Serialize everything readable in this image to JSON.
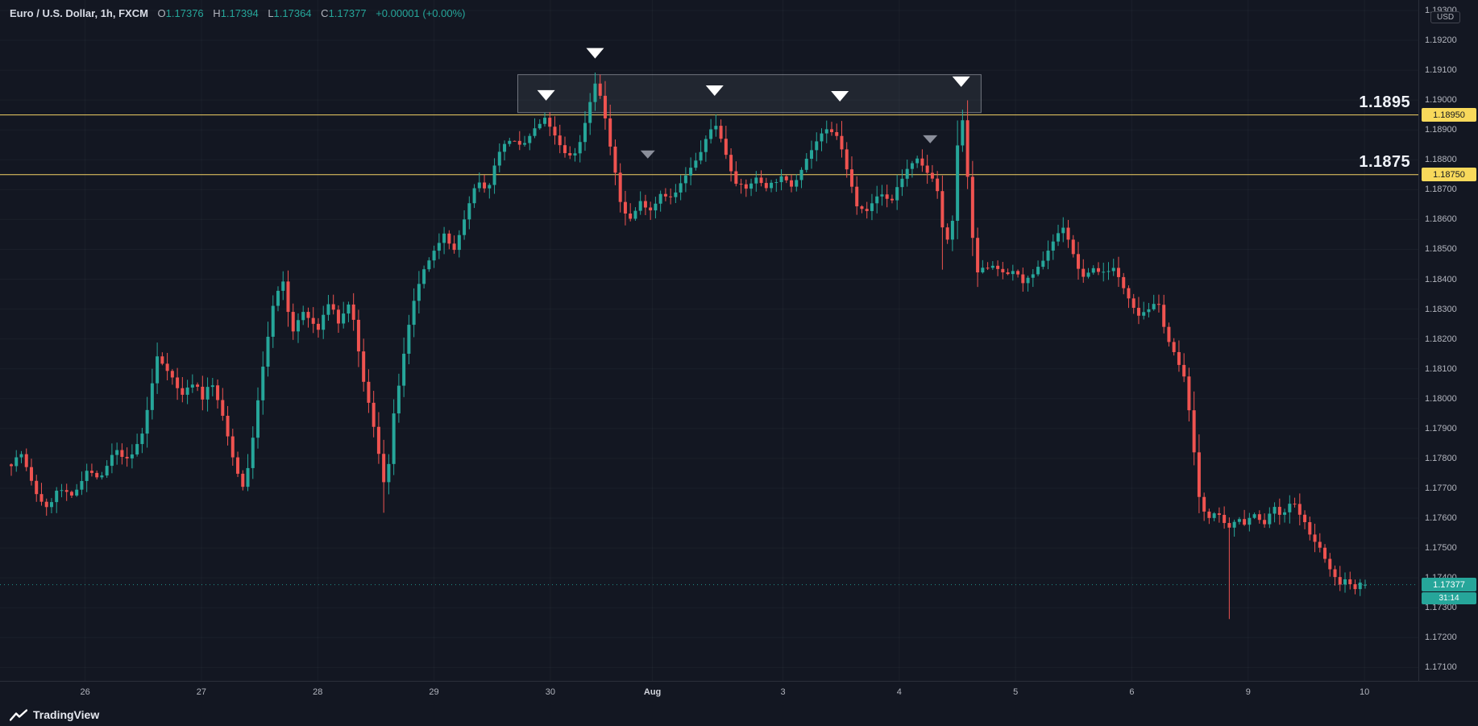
{
  "header": {
    "symbol_title": "Euro / U.S. Dollar, 1h, FXCM",
    "o_label": "O",
    "o_value": "1.17376",
    "h_label": "H",
    "h_value": "1.17394",
    "l_label": "L",
    "l_value": "1.17364",
    "c_label": "C",
    "c_value": "1.17377",
    "change": "+0.00001 (+0.00%)"
  },
  "levels_text": {
    "upper": "1.1895",
    "lower": "1.1875"
  },
  "levels_axis": {
    "upper": "1.18950",
    "lower": "1.18750"
  },
  "axis": {
    "currency_badge": "USD"
  },
  "last_price": {
    "value": "1.17377",
    "countdown": "31:14"
  },
  "footer": {
    "brand": "TradingView"
  },
  "colors": {
    "background": "#131722",
    "up": "#26a69a",
    "down": "#ef5350",
    "grid": "rgba(170,175,188,0.055)",
    "level_line": "#f3d264",
    "level_label_bg": "#f8d95b",
    "last_price_chip": "#26a69a",
    "marker_white": "#ffffff",
    "marker_gray": "#8b8f9b",
    "zone_fill": "rgba(134,139,150,0.13)",
    "zone_border": "rgba(220,224,232,0.45)",
    "axis_text": "#b2b5be",
    "text_primary": "#d1d4dc"
  },
  "chart_data": {
    "type": "candlestick",
    "title": "Euro / U.S. Dollar, 1h, FXCM",
    "symbol": "EUR/USD",
    "exchange": "FXCM",
    "interval": "1h",
    "ohlc_current": {
      "open": 1.17376,
      "high": 1.17394,
      "low": 1.17364,
      "close": 1.17377
    },
    "change": "+0.00001 (+0.00%)",
    "last_close": 1.17377,
    "countdown": "31:14",
    "price_scale": {
      "top": 1.19335,
      "bottom": 1.17055
    },
    "price_axis": {
      "max": 1.193,
      "min": 1.171,
      "step": 0.001,
      "labels": [
        "1.19300",
        "1.19200",
        "1.19100",
        "1.19000",
        "1.18900",
        "1.18800",
        "1.18700",
        "1.18600",
        "1.18500",
        "1.18400",
        "1.18300",
        "1.18200",
        "1.18100",
        "1.18000",
        "1.17900",
        "1.17800",
        "1.17700",
        "1.17600",
        "1.17500",
        "1.17400",
        "1.17300",
        "1.17200",
        "1.17100"
      ]
    },
    "time_axis": [
      {
        "label": "26",
        "f": 0.06
      },
      {
        "label": "27",
        "f": 0.142
      },
      {
        "label": "28",
        "f": 0.224
      },
      {
        "label": "29",
        "f": 0.306
      },
      {
        "label": "30",
        "f": 0.388
      },
      {
        "label": "Aug",
        "f": 0.46,
        "major": true
      },
      {
        "label": "3",
        "f": 0.552
      },
      {
        "label": "4",
        "f": 0.634
      },
      {
        "label": "5",
        "f": 0.716
      },
      {
        "label": "6",
        "f": 0.798
      },
      {
        "label": "9",
        "f": 0.88
      },
      {
        "label": "10",
        "f": 0.962
      }
    ],
    "levels": [
      {
        "label": "1.1895",
        "price": 1.1895,
        "axis_label": "1.18950"
      },
      {
        "label": "1.1875",
        "price": 1.1875,
        "axis_label": "1.18750"
      }
    ],
    "zone": {
      "f_from": 0.3741,
      "f_to": 0.7163,
      "price_top": 1.19085,
      "price_bottom": 1.18958
    },
    "markers": [
      {
        "f": 0.395,
        "price": 1.18998,
        "color": "white"
      },
      {
        "f": 0.4312,
        "price": 1.19139,
        "color": "white"
      },
      {
        "f": 0.5195,
        "price": 1.19014,
        "color": "white"
      },
      {
        "f": 0.612,
        "price": 1.18995,
        "color": "white"
      },
      {
        "f": 0.7016,
        "price": 1.19044,
        "color": "white"
      },
      {
        "f": 0.4701,
        "price": 1.18804,
        "color": "gray"
      },
      {
        "f": 0.6787,
        "price": 1.18855,
        "color": "gray"
      }
    ],
    "candle_count": 270,
    "wick_seed": 7,
    "wick_max": 0.00032,
    "close_noise": 6e-05,
    "price_path": [
      [
        0.0,
        1.1778
      ],
      [
        0.007,
        1.1782
      ],
      [
        0.0174,
        1.1769
      ],
      [
        0.0264,
        1.1763
      ],
      [
        0.0348,
        1.177
      ],
      [
        0.0452,
        1.1767
      ],
      [
        0.0556,
        1.1776
      ],
      [
        0.0661,
        1.1773
      ],
      [
        0.0765,
        1.1783
      ],
      [
        0.0869,
        1.1779
      ],
      [
        0.0974,
        1.1789
      ],
      [
        0.1078,
        1.1814
      ],
      [
        0.1168,
        1.1809
      ],
      [
        0.1252,
        1.1801
      ],
      [
        0.1356,
        1.1806
      ],
      [
        0.1412,
        1.18
      ],
      [
        0.1474,
        1.1806
      ],
      [
        0.1544,
        1.1797
      ],
      [
        0.1634,
        1.1781
      ],
      [
        0.1704,
        1.177
      ],
      [
        0.1752,
        1.1777
      ],
      [
        0.1843,
        1.1806
      ],
      [
        0.1933,
        1.1831
      ],
      [
        0.2003,
        1.184
      ],
      [
        0.2072,
        1.1822
      ],
      [
        0.2156,
        1.1829
      ],
      [
        0.2267,
        1.1823
      ],
      [
        0.235,
        1.1833
      ],
      [
        0.242,
        1.1825
      ],
      [
        0.2503,
        1.1833
      ],
      [
        0.2587,
        1.1809
      ],
      [
        0.2656,
        1.1795
      ],
      [
        0.2726,
        1.1779
      ],
      [
        0.2768,
        1.1768
      ],
      [
        0.2816,
        1.1792
      ],
      [
        0.2886,
        1.1811
      ],
      [
        0.2955,
        1.1829
      ],
      [
        0.3025,
        1.1841
      ],
      [
        0.3122,
        1.1849
      ],
      [
        0.3199,
        1.1856
      ],
      [
        0.3268,
        1.1849
      ],
      [
        0.3352,
        1.1861
      ],
      [
        0.3442,
        1.1873
      ],
      [
        0.3512,
        1.1869
      ],
      [
        0.3602,
        1.1883
      ],
      [
        0.3686,
        1.1887
      ],
      [
        0.3769,
        1.1884
      ],
      [
        0.386,
        1.189
      ],
      [
        0.395,
        1.1894
      ],
      [
        0.4033,
        1.1886
      ],
      [
        0.4103,
        1.1881
      ],
      [
        0.4186,
        1.1883
      ],
      [
        0.4256,
        1.1896
      ],
      [
        0.4312,
        1.1906
      ],
      [
        0.4367,
        1.1899
      ],
      [
        0.4437,
        1.1881
      ],
      [
        0.4506,
        1.1864
      ],
      [
        0.4576,
        1.186
      ],
      [
        0.4645,
        1.1866
      ],
      [
        0.4729,
        1.1863
      ],
      [
        0.4798,
        1.1869
      ],
      [
        0.4882,
        1.1867
      ],
      [
        0.4972,
        1.1874
      ],
      [
        0.5063,
        1.188
      ],
      [
        0.5146,
        1.1888
      ],
      [
        0.5195,
        1.1893
      ],
      [
        0.5271,
        1.1883
      ],
      [
        0.5341,
        1.1873
      ],
      [
        0.5424,
        1.187
      ],
      [
        0.5494,
        1.1874
      ],
      [
        0.5577,
        1.1871
      ],
      [
        0.5688,
        1.1874
      ],
      [
        0.5772,
        1.1871
      ],
      [
        0.5855,
        1.1879
      ],
      [
        0.5946,
        1.1886
      ],
      [
        0.6015,
        1.189
      ],
      [
        0.6106,
        1.1888
      ],
      [
        0.6175,
        1.1876
      ],
      [
        0.6245,
        1.1865
      ],
      [
        0.6328,
        1.1863
      ],
      [
        0.6412,
        1.1869
      ],
      [
        0.6502,
        1.1866
      ],
      [
        0.6544,
        1.1871
      ],
      [
        0.662,
        1.1877
      ],
      [
        0.669,
        1.188
      ],
      [
        0.6759,
        1.1876
      ],
      [
        0.6829,
        1.1873
      ],
      [
        0.6885,
        1.1855
      ],
      [
        0.694,
        1.1851
      ],
      [
        0.6996,
        1.189
      ],
      [
        0.7038,
        1.1894
      ],
      [
        0.7079,
        1.1862
      ],
      [
        0.7128,
        1.1842
      ],
      [
        0.7198,
        1.1844
      ],
      [
        0.7267,
        1.1845
      ],
      [
        0.7337,
        1.1841
      ],
      [
        0.7399,
        1.1843
      ],
      [
        0.7476,
        1.1839
      ],
      [
        0.7545,
        1.1841
      ],
      [
        0.7615,
        1.1846
      ],
      [
        0.7684,
        1.1852
      ],
      [
        0.7775,
        1.1858
      ],
      [
        0.7844,
        1.1848
      ],
      [
        0.7914,
        1.184
      ],
      [
        0.7983,
        1.1844
      ],
      [
        0.8053,
        1.1842
      ],
      [
        0.8136,
        1.1844
      ],
      [
        0.8206,
        1.1838
      ],
      [
        0.8254,
        1.1834
      ],
      [
        0.8324,
        1.1828
      ],
      [
        0.8393,
        1.183
      ],
      [
        0.847,
        1.1832
      ],
      [
        0.854,
        1.182
      ],
      [
        0.8609,
        1.1813
      ],
      [
        0.8679,
        1.1805
      ],
      [
        0.8727,
        1.1785
      ],
      [
        0.8776,
        1.1766
      ],
      [
        0.8832,
        1.176
      ],
      [
        0.8901,
        1.1762
      ],
      [
        0.8957,
        1.1758
      ],
      [
        0.9006,
        1.1756
      ],
      [
        0.9054,
        1.1761
      ],
      [
        0.911,
        1.1758
      ],
      [
        0.9179,
        1.1762
      ],
      [
        0.9249,
        1.1757
      ],
      [
        0.9318,
        1.1764
      ],
      [
        0.9388,
        1.176
      ],
      [
        0.9457,
        1.1766
      ],
      [
        0.9527,
        1.1761
      ],
      [
        0.9596,
        1.1754
      ],
      [
        0.9666,
        1.175
      ],
      [
        0.9735,
        1.1743
      ],
      [
        0.9805,
        1.1738
      ],
      [
        0.9861,
        1.174
      ],
      [
        0.9916,
        1.1736
      ],
      [
        0.9965,
        1.1739
      ],
      [
        1.0,
        1.17377
      ]
    ],
    "special_wicks": [
      {
        "f": 0.0264,
        "low": 1.17608
      },
      {
        "f": 0.2768,
        "low": 1.17618
      },
      {
        "f": 0.395,
        "high": 1.18958
      },
      {
        "f": 0.4312,
        "high": 1.19092
      },
      {
        "f": 0.5195,
        "high": 1.18952
      },
      {
        "f": 0.612,
        "high": 1.1893
      },
      {
        "f": 0.6885,
        "low": 1.18432
      },
      {
        "f": 0.7016,
        "high": 1.18968
      },
      {
        "f": 0.9006,
        "low": 1.17262
      }
    ]
  }
}
